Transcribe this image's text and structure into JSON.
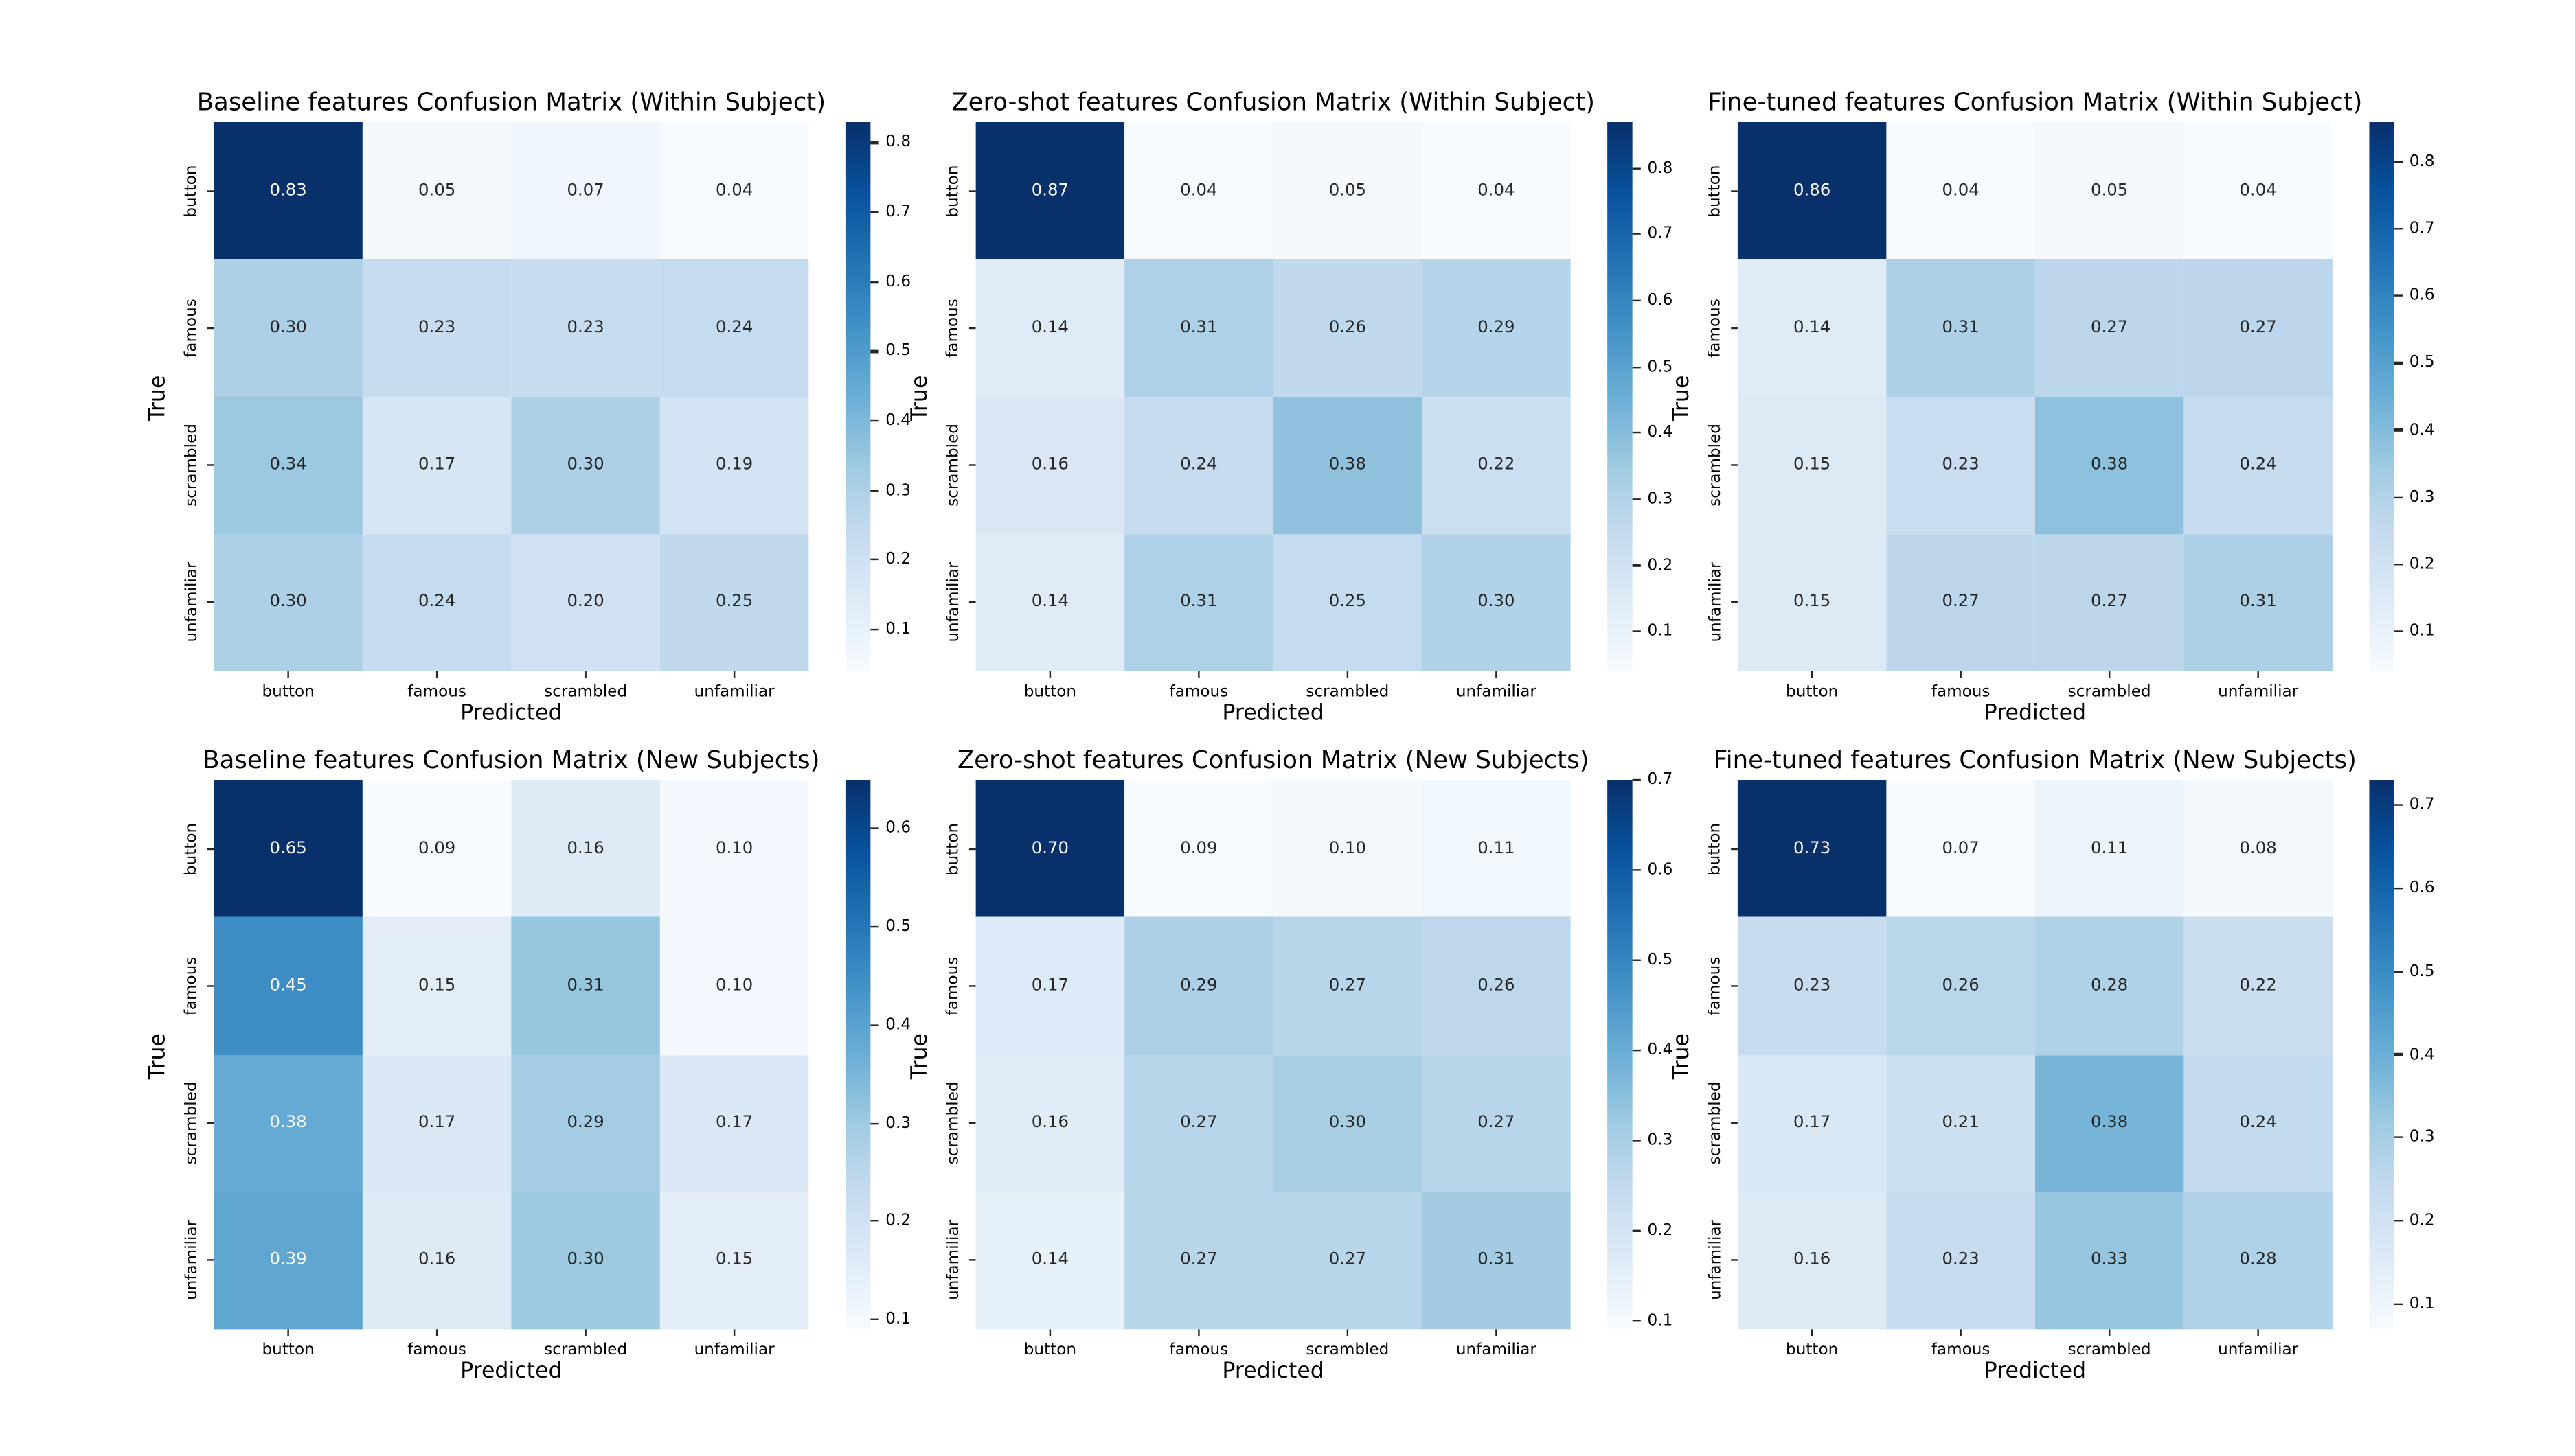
{
  "figure": {
    "background": "#ffffff",
    "annotation_format": "0.2f",
    "colorbar_tick_format": "0.1f"
  },
  "colors": {
    "colormap": "Blues",
    "colormap_anchors": [
      "#f7fbff",
      "#deebf7",
      "#c6dbef",
      "#9ecae1",
      "#6baed6",
      "#4292c6",
      "#2171b5",
      "#08519c",
      "#08306b"
    ],
    "annotation_dark_text": "#262626",
    "annotation_light_text": "#ffffff",
    "axis_text": "#000000"
  },
  "chart_data": [
    {
      "type": "heatmap",
      "title": "Baseline features Confusion Matrix (Within Subject)",
      "xlabel": "Predicted",
      "ylabel": "True",
      "x_categories": [
        "button",
        "famous",
        "scrambled",
        "unfamiliar"
      ],
      "y_categories": [
        "button",
        "famous",
        "scrambled",
        "unfamiliar"
      ],
      "rows": [
        [
          0.83,
          0.05,
          0.07,
          0.04
        ],
        [
          0.3,
          0.23,
          0.23,
          0.24
        ],
        [
          0.34,
          0.17,
          0.3,
          0.19
        ],
        [
          0.3,
          0.24,
          0.2,
          0.25
        ]
      ],
      "colorbar_ticks": [
        0.1,
        0.2,
        0.3,
        0.4,
        0.5,
        0.6,
        0.7,
        0.8
      ],
      "legend_position": "right",
      "grid": false
    },
    {
      "type": "heatmap",
      "title": "Zero-shot features Confusion Matrix (Within Subject)",
      "xlabel": "Predicted",
      "ylabel": "True",
      "x_categories": [
        "button",
        "famous",
        "scrambled",
        "unfamiliar"
      ],
      "y_categories": [
        "button",
        "famous",
        "scrambled",
        "unfamiliar"
      ],
      "rows": [
        [
          0.87,
          0.04,
          0.05,
          0.04
        ],
        [
          0.14,
          0.31,
          0.26,
          0.29
        ],
        [
          0.16,
          0.24,
          0.38,
          0.22
        ],
        [
          0.14,
          0.31,
          0.25,
          0.3
        ]
      ],
      "colorbar_ticks": [
        0.1,
        0.2,
        0.3,
        0.4,
        0.5,
        0.6,
        0.7,
        0.8
      ],
      "legend_position": "right",
      "grid": false
    },
    {
      "type": "heatmap",
      "title": "Fine-tuned features Confusion Matrix (Within Subject)",
      "xlabel": "Predicted",
      "ylabel": "True",
      "x_categories": [
        "button",
        "famous",
        "scrambled",
        "unfamiliar"
      ],
      "y_categories": [
        "button",
        "famous",
        "scrambled",
        "unfamiliar"
      ],
      "rows": [
        [
          0.86,
          0.04,
          0.05,
          0.04
        ],
        [
          0.14,
          0.31,
          0.27,
          0.27
        ],
        [
          0.15,
          0.23,
          0.38,
          0.24
        ],
        [
          0.15,
          0.27,
          0.27,
          0.31
        ]
      ],
      "colorbar_ticks": [
        0.1,
        0.2,
        0.3,
        0.4,
        0.5,
        0.6,
        0.7,
        0.8
      ],
      "legend_position": "right",
      "grid": false
    },
    {
      "type": "heatmap",
      "title": "Baseline features Confusion Matrix (New Subjects)",
      "xlabel": "Predicted",
      "ylabel": "True",
      "x_categories": [
        "button",
        "famous",
        "scrambled",
        "unfamiliar"
      ],
      "y_categories": [
        "button",
        "famous",
        "scrambled",
        "unfamiliar"
      ],
      "rows": [
        [
          0.65,
          0.09,
          0.16,
          0.1
        ],
        [
          0.45,
          0.15,
          0.31,
          0.1
        ],
        [
          0.38,
          0.17,
          0.29,
          0.17
        ],
        [
          0.39,
          0.16,
          0.3,
          0.15
        ]
      ],
      "colorbar_ticks": [
        0.1,
        0.2,
        0.3,
        0.4,
        0.5,
        0.6
      ],
      "legend_position": "right",
      "grid": false
    },
    {
      "type": "heatmap",
      "title": "Zero-shot features Confusion Matrix (New Subjects)",
      "xlabel": "Predicted",
      "ylabel": "True",
      "x_categories": [
        "button",
        "famous",
        "scrambled",
        "unfamiliar"
      ],
      "y_categories": [
        "button",
        "famous",
        "scrambled",
        "unfamiliar"
      ],
      "rows": [
        [
          0.7,
          0.09,
          0.1,
          0.11
        ],
        [
          0.17,
          0.29,
          0.27,
          0.26
        ],
        [
          0.16,
          0.27,
          0.3,
          0.27
        ],
        [
          0.14,
          0.27,
          0.27,
          0.31
        ]
      ],
      "colorbar_ticks": [
        0.1,
        0.2,
        0.3,
        0.4,
        0.5,
        0.6,
        0.7
      ],
      "legend_position": "right",
      "grid": false
    },
    {
      "type": "heatmap",
      "title": "Fine-tuned features Confusion Matrix (New Subjects)",
      "xlabel": "Predicted",
      "ylabel": "True",
      "x_categories": [
        "button",
        "famous",
        "scrambled",
        "unfamiliar"
      ],
      "y_categories": [
        "button",
        "famous",
        "scrambled",
        "unfamiliar"
      ],
      "rows": [
        [
          0.73,
          0.07,
          0.11,
          0.08
        ],
        [
          0.23,
          0.26,
          0.28,
          0.22
        ],
        [
          0.17,
          0.21,
          0.38,
          0.24
        ],
        [
          0.16,
          0.23,
          0.33,
          0.28
        ]
      ],
      "colorbar_ticks": [
        0.1,
        0.2,
        0.3,
        0.4,
        0.5,
        0.6,
        0.7
      ],
      "legend_position": "right",
      "grid": false
    }
  ]
}
